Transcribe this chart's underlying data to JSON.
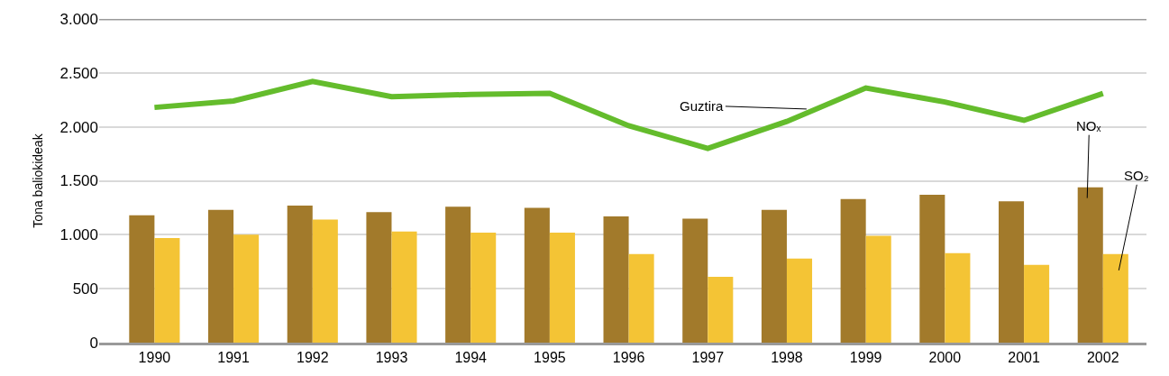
{
  "chart_data": {
    "type": "bar",
    "ylabel": "Tona baliokideak",
    "categories": [
      "1990",
      "1991",
      "1992",
      "1993",
      "1994",
      "1995",
      "1996",
      "1997",
      "1998",
      "1999",
      "2000",
      "2001",
      "2002"
    ],
    "series": [
      {
        "name": "NOₓ",
        "color": "#a27a2b",
        "values": [
          1180,
          1230,
          1270,
          1210,
          1260,
          1250,
          1170,
          1150,
          1230,
          1330,
          1370,
          1310,
          1440
        ]
      },
      {
        "name": "SO₂",
        "color": "#f4c435",
        "values": [
          970,
          1000,
          1140,
          1030,
          1020,
          1020,
          820,
          610,
          780,
          990,
          830,
          720,
          820
        ]
      },
      {
        "name": "Guztira",
        "type": "line",
        "color": "#64bc2c",
        "values": [
          2180,
          2240,
          2420,
          2280,
          2300,
          2310,
          2010,
          1800,
          2050,
          2360,
          2230,
          2060,
          2310
        ]
      }
    ],
    "ylim": [
      0,
      3000
    ],
    "yticks": [
      {
        "value": 0,
        "label": "0"
      },
      {
        "value": 500,
        "label": "500"
      },
      {
        "value": 1000,
        "label": "1.000"
      },
      {
        "value": 1500,
        "label": "1.500"
      },
      {
        "value": 2000,
        "label": "2.000"
      },
      {
        "value": 2500,
        "label": "2.500"
      },
      {
        "value": 3000,
        "label": "3.000"
      }
    ],
    "grid": "y",
    "legend": false,
    "marker": "none",
    "line_style": "solid"
  }
}
